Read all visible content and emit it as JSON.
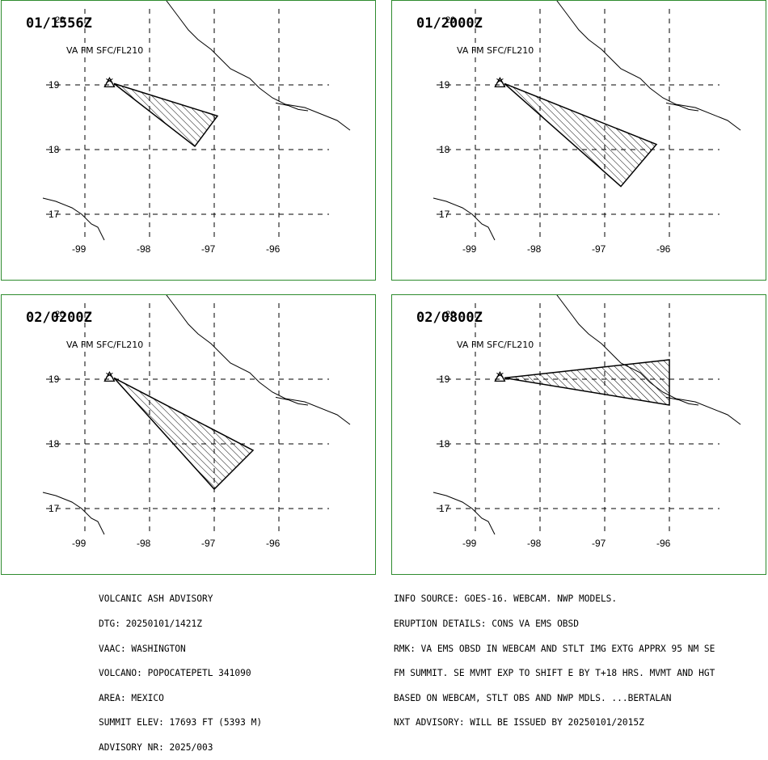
{
  "panels": [
    {
      "time": "01/1556Z",
      "level": "VA FM SFC/FL210",
      "ash_polygon": [
        [
          -98.55,
          19.02
        ],
        [
          -96.95,
          18.52
        ],
        [
          -97.3,
          18.05
        ],
        [
          -98.55,
          19.02
        ]
      ]
    },
    {
      "time": "01/2000Z",
      "level": "VA FM SFC/FL210",
      "ash_polygon": [
        [
          -98.55,
          19.02
        ],
        [
          -96.2,
          18.08
        ],
        [
          -96.75,
          17.43
        ],
        [
          -98.55,
          19.02
        ]
      ]
    },
    {
      "time": "02/0200Z",
      "level": "VA FM SFC/FL210",
      "ash_polygon": [
        [
          -98.55,
          19.02
        ],
        [
          -96.4,
          17.9
        ],
        [
          -97.0,
          17.3
        ],
        [
          -98.55,
          19.02
        ]
      ]
    },
    {
      "time": "02/0800Z",
      "level": "VA FM SFC/FL210",
      "ash_polygon": [
        [
          -98.55,
          19.02
        ],
        [
          -96.0,
          19.3
        ],
        [
          -96.0,
          18.6
        ],
        [
          -98.55,
          19.02
        ]
      ]
    }
  ],
  "map": {
    "lat_labels": [
      "20",
      "19",
      "18",
      "17"
    ],
    "lon_labels": [
      "-99",
      "-98",
      "-97",
      "-96"
    ],
    "volcano_symbol": "volcano-triangle-icon",
    "colors": {
      "frame": "#2e8b2e",
      "lines": "#000000",
      "hatch": "#000000"
    }
  },
  "bulletin_left": [
    "VOLCANIC ASH ADVISORY",
    "DTG: 20250101/1421Z",
    "VAAC: WASHINGTON",
    "VOLCANO: POPOCATEPETL 341090",
    "AREA: MEXICO",
    "SUMMIT ELEV: 17693 FT (5393 M)",
    "ADVISORY NR: 2025/003"
  ],
  "bulletin_right": [
    "INFO SOURCE: GOES-16. WEBCAM. NWP MODELS.",
    "ERUPTION DETAILS: CONS VA EMS OBSD",
    "RMK: VA EMS OBSD IN WEBCAM AND STLT IMG EXTG APPRX 95 NM SE",
    "FM SUMMIT. SE MVMT EXP TO SHIFT E BY T+18 HRS. MVMT AND HGT",
    "BASED ON WEBCAM, STLT OBS AND NWP MDLS. ...BERTALAN",
    "NXT ADVISORY: WILL BE ISSUED BY 20250101/2015Z"
  ]
}
